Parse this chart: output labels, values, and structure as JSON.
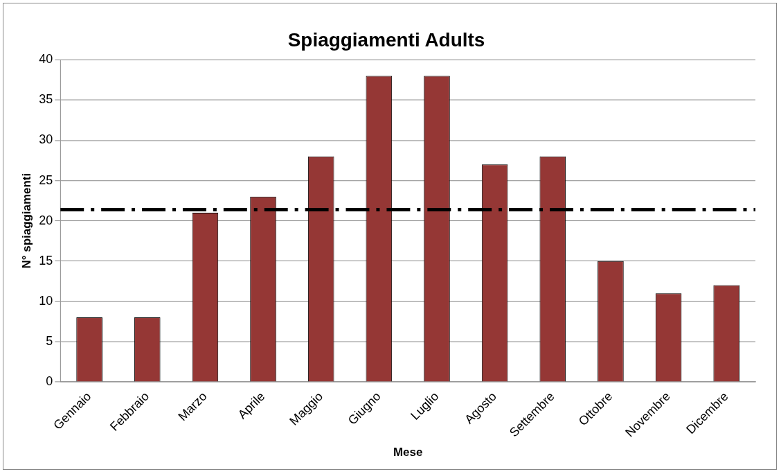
{
  "chart_data": {
    "type": "bar",
    "title": "Spiaggiamenti Adults",
    "xlabel": "Mese",
    "ylabel": "N° spiaggiamenti",
    "categories": [
      "Gennaio",
      "Febbraio",
      "Marzo",
      "Aprile",
      "Maggio",
      "Giugno",
      "Luglio",
      "Agosto",
      "Settembre",
      "Ottobre",
      "Novembre",
      "Dicembre"
    ],
    "values": [
      8,
      8,
      21,
      23,
      28,
      38,
      38,
      27,
      28,
      15,
      11,
      12
    ],
    "color": "#953735",
    "ylim": [
      0,
      40
    ],
    "yticks": [
      0,
      5,
      10,
      15,
      20,
      25,
      30,
      35,
      40
    ],
    "grid": "y",
    "legend": false,
    "ref_lines": [
      {
        "axis": "y",
        "value": 21.4,
        "color": "#000000",
        "line_style": "dashed"
      }
    ]
  }
}
